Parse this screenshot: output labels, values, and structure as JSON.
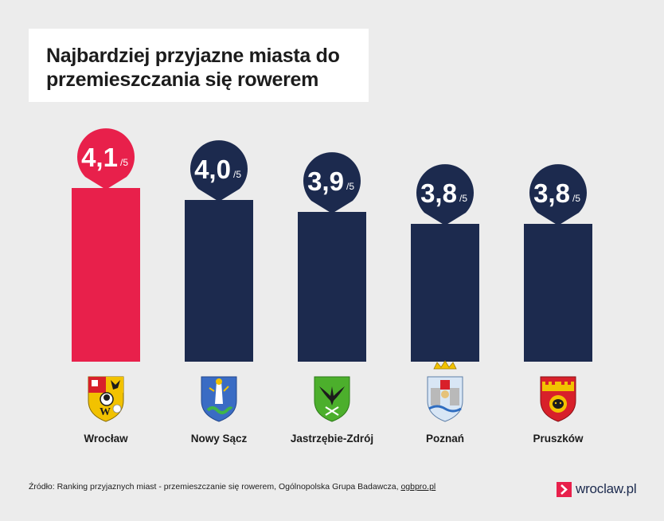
{
  "title": "Najbardziej przyjazne miasta do przemieszczania się rowerem",
  "source": {
    "prefix": "Źródło: Ranking przyjaznych miast - przemieszczanie się rowerem, Ogólnopolska Grupa Badawcza, ",
    "link": "ogbpro.pl"
  },
  "brand": {
    "name": "wroclaw.pl",
    "icon": "chevron-right-icon"
  },
  "colors": {
    "highlight": "#e8204b",
    "bar": "#1c2a4e",
    "background": "#ececec"
  },
  "chart_data": {
    "type": "bar",
    "categories": [
      "Wrocław",
      "Nowy Sącz",
      "Jastrzębie-Zdrój",
      "Poznań",
      "Pruszków"
    ],
    "values": [
      4.1,
      4.0,
      3.9,
      3.8,
      3.8
    ],
    "value_labels": [
      "4,1",
      "4,0",
      "3,9",
      "3,8",
      "3,8"
    ],
    "unit_suffix": "/5",
    "highlight_index": 0,
    "crest_icons": [
      "wroclaw-crest-icon",
      "nowy-sacz-crest-icon",
      "jastrzebie-zdroj-crest-icon",
      "poznan-crest-icon",
      "pruszkow-crest-icon"
    ]
  }
}
